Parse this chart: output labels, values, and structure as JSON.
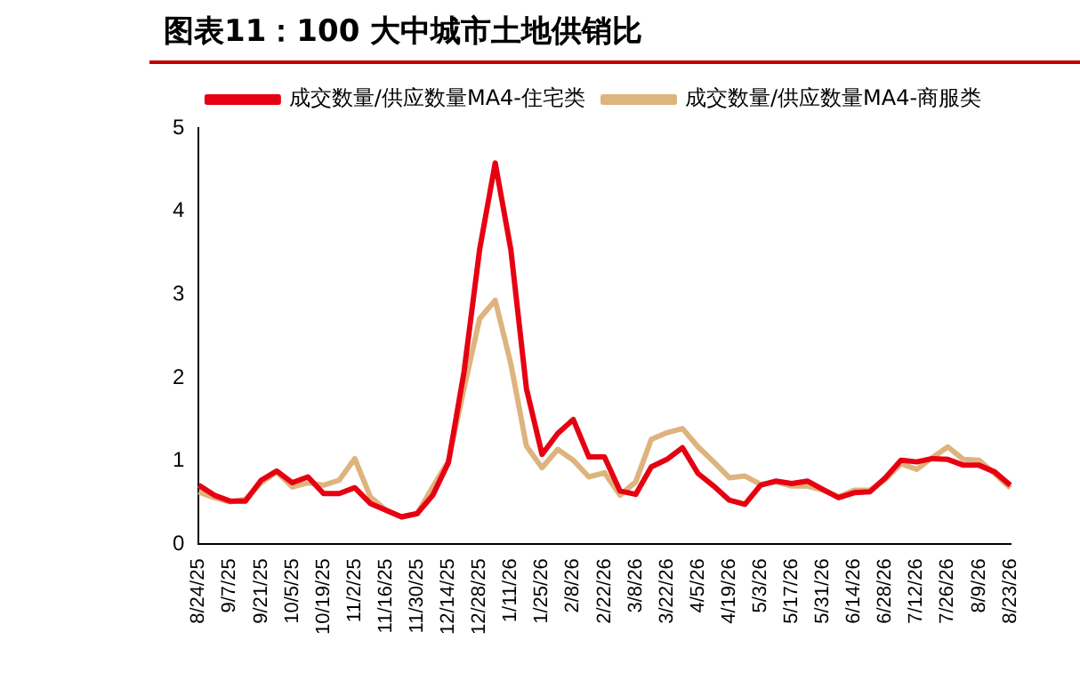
{
  "chart_data": {
    "type": "line",
    "title": "图表11：100 大中城市土地供销比",
    "categories": [
      "8/24/25",
      null,
      "9/7/25",
      null,
      "9/21/25",
      null,
      "10/5/25",
      null,
      "10/19/25",
      null,
      "11/2/25",
      null,
      "11/16/25",
      null,
      "11/30/25",
      null,
      "12/14/25",
      null,
      "12/28/25",
      null,
      "1/11/26",
      null,
      "1/25/26",
      null,
      "2/8/26",
      null,
      "2/22/26",
      null,
      "3/8/26",
      null,
      "3/22/26",
      null,
      "4/5/26",
      null,
      "4/19/26",
      null,
      "5/3/26",
      null,
      "5/17/26",
      null,
      "5/31/26",
      null,
      "6/14/26",
      null,
      "6/28/26",
      null,
      "7/12/26",
      null,
      "7/26/26",
      null,
      "8/9/26",
      null,
      "8/23/26"
    ],
    "series": [
      {
        "name": "成交数量/供应数量MA4-住宅类",
        "color": "#e60012",
        "values": [
          0.71,
          0.59,
          0.52,
          0.52,
          0.77,
          0.88,
          0.74,
          0.81,
          0.61,
          0.61,
          0.68,
          0.49,
          0.41,
          0.33,
          0.37,
          0.59,
          0.98,
          2.07,
          3.54,
          4.58,
          3.54,
          1.87,
          1.08,
          1.33,
          1.5,
          1.05,
          1.05,
          0.64,
          0.6,
          0.93,
          1.02,
          1.16,
          0.85,
          0.7,
          0.53,
          0.48,
          0.71,
          0.76,
          0.73,
          0.76,
          0.66,
          0.56,
          0.62,
          0.63,
          0.8,
          1.01,
          0.99,
          1.03,
          1.02,
          0.95,
          0.95,
          0.87,
          0.71
        ]
      },
      {
        "name": "成交数量/供应数量MA4-商服类",
        "color": "#deb47e",
        "values": [
          0.63,
          0.56,
          0.51,
          0.54,
          0.74,
          0.87,
          0.69,
          0.74,
          0.71,
          0.77,
          1.03,
          0.57,
          0.41,
          0.33,
          0.37,
          0.69,
          1.0,
          1.87,
          2.71,
          2.93,
          2.17,
          1.18,
          0.92,
          1.14,
          1.01,
          0.81,
          0.86,
          0.59,
          0.75,
          1.26,
          1.34,
          1.39,
          1.17,
          0.99,
          0.8,
          0.82,
          0.72,
          0.75,
          0.7,
          0.7,
          0.65,
          0.57,
          0.65,
          0.65,
          0.78,
          0.97,
          0.9,
          1.04,
          1.17,
          1.02,
          1.01,
          0.85,
          0.68
        ]
      }
    ],
    "ylim": [
      0,
      5
    ],
    "yticks": [
      0,
      1,
      2,
      3,
      4,
      5
    ],
    "grid": false,
    "legend": "top",
    "marker": "none",
    "line_style": "solid"
  }
}
